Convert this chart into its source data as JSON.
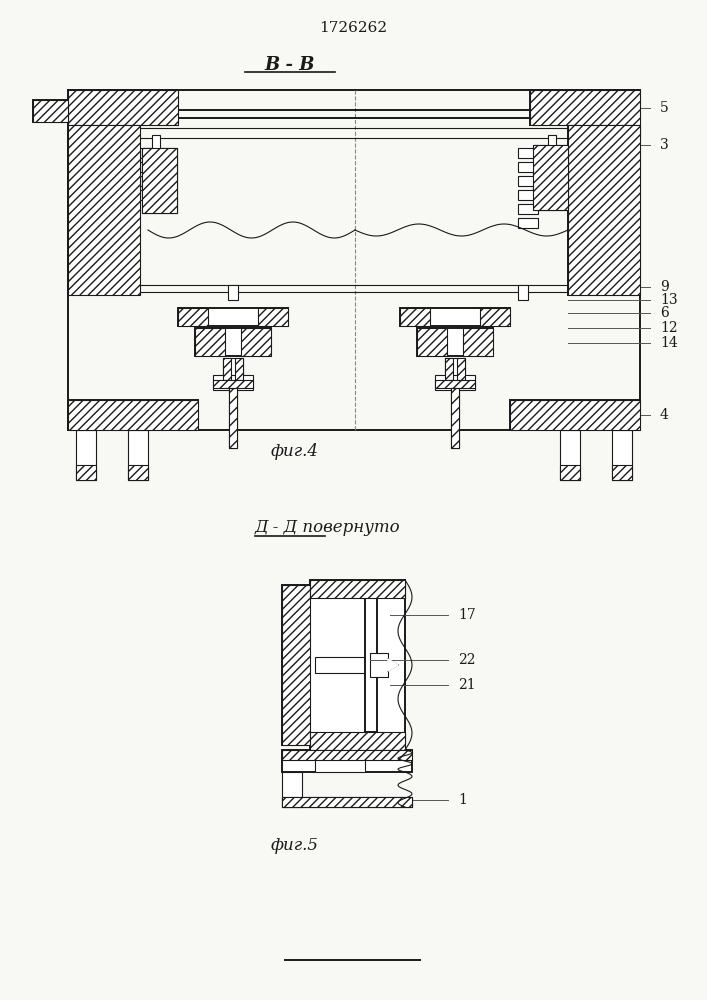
{
  "patent_number": "1726262",
  "fig4_label": "B - B",
  "fig4_caption": "фиг.4",
  "fig5_label": "Д - Д повернуто",
  "fig5_caption": "фиг.5",
  "bg_color": "#f8f8f5",
  "line_color": "#1a1a1a"
}
